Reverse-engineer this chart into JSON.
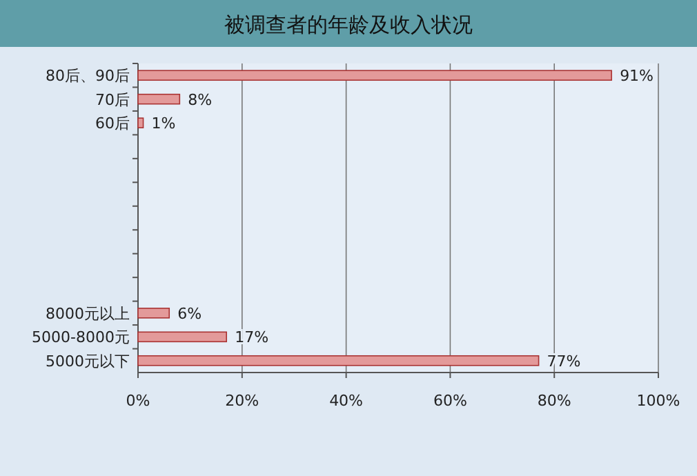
{
  "chart_data": {
    "type": "bar",
    "orientation": "horizontal",
    "title": "被调查者的年龄及收入状况",
    "categories": [
      "80后、90后",
      "70后",
      "60后",
      null,
      null,
      null,
      null,
      null,
      null,
      null,
      "8000元以上",
      "5000-8000元",
      "5000元以下"
    ],
    "values": [
      91,
      8,
      1,
      null,
      null,
      null,
      null,
      null,
      null,
      null,
      6,
      17,
      77
    ],
    "value_labels": [
      "91%",
      "8%",
      "1%",
      null,
      null,
      null,
      null,
      null,
      null,
      null,
      "6%",
      "17%",
      "77%"
    ],
    "color": "#e39a9a",
    "xlim": [
      0,
      100
    ],
    "xticks": [
      {
        "value": 0,
        "label": "0%"
      },
      {
        "value": 20,
        "label": "20%"
      },
      {
        "value": 40,
        "label": "40%"
      },
      {
        "value": 60,
        "label": "60%"
      },
      {
        "value": 80,
        "label": "80%"
      },
      {
        "value": 100,
        "label": "100%"
      }
    ],
    "grid": "x"
  }
}
